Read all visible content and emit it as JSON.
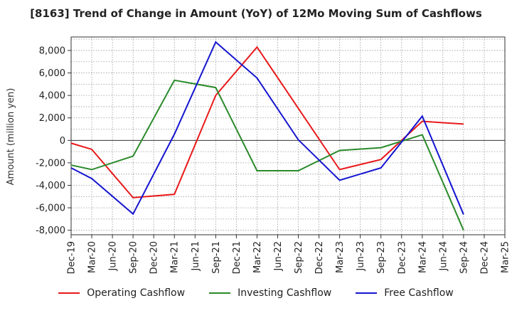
{
  "chart_data": {
    "type": "line",
    "title": "[8163]  Trend of Change in Amount (YoY) of 12Mo Moving Sum of Cashflows",
    "xlabel": "",
    "ylabel": "Amount (million yen)",
    "ylim": [
      -8400,
      9200
    ],
    "yticks": [
      -8000,
      -6000,
      -4000,
      -2000,
      0,
      2000,
      4000,
      6000,
      8000
    ],
    "ytick_labels": [
      "-8,000",
      "-6,000",
      "-4,000",
      "-2,000",
      "0",
      "2,000",
      "4,000",
      "6,000",
      "8,000"
    ],
    "categories": [
      "Dec-19",
      "Mar-20",
      "Jun-20",
      "Sep-20",
      "Dec-20",
      "Mar-21",
      "Jun-21",
      "Sep-21",
      "Dec-21",
      "Mar-22",
      "Jun-22",
      "Sep-22",
      "Dec-22",
      "Mar-23",
      "Jun-23",
      "Sep-23",
      "Dec-23",
      "Mar-24",
      "Jun-24",
      "Sep-24",
      "Dec-24",
      "Mar-25"
    ],
    "grid": true,
    "legend_position": "bottom",
    "series": [
      {
        "name": "Operating Cashflow",
        "color": "#e8191a",
        "values": [
          -250,
          -800,
          null,
          -5100,
          null,
          -4800,
          null,
          4000,
          null,
          8300,
          null,
          null,
          null,
          -2600,
          null,
          -1700,
          null,
          1700,
          null,
          1450,
          null,
          null
        ]
      },
      {
        "name": "Investing Cashflow",
        "color": "#2a8a2a",
        "values": [
          -2200,
          -2600,
          null,
          -1400,
          null,
          5350,
          null,
          4700,
          null,
          -2700,
          null,
          -2700,
          null,
          -900,
          null,
          -650,
          null,
          500,
          null,
          -8000,
          null,
          null
        ]
      },
      {
        "name": "Free Cashflow",
        "color": "#1515d0",
        "values": [
          -2450,
          -3400,
          null,
          -6550,
          null,
          550,
          null,
          8750,
          null,
          5550,
          null,
          50,
          null,
          -3550,
          null,
          -2450,
          null,
          2150,
          null,
          -6600,
          null,
          null
        ]
      }
    ]
  }
}
